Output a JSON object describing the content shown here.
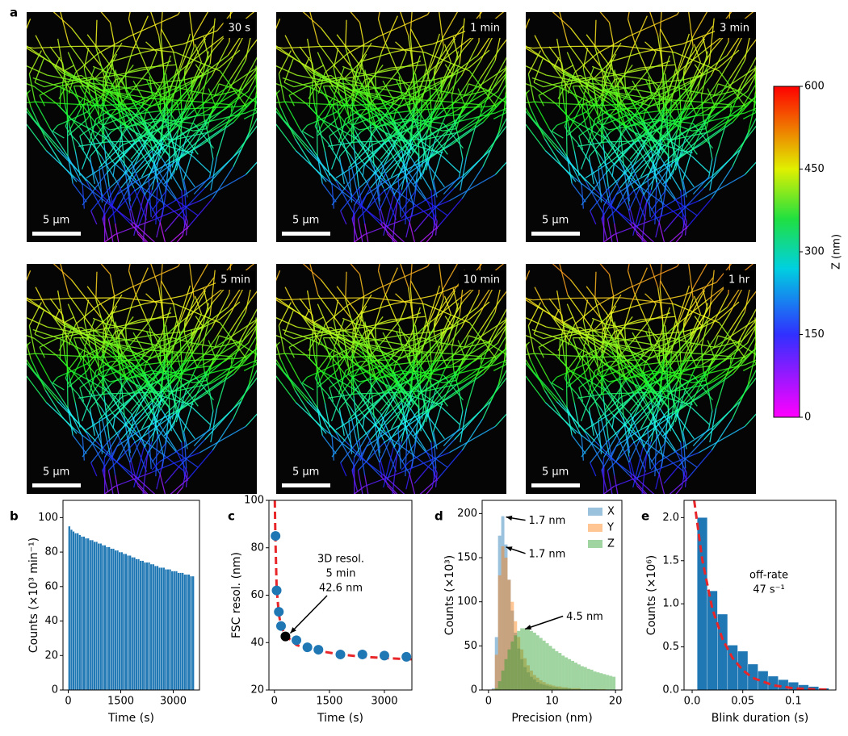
{
  "panel_labels": [
    "a",
    "b",
    "c",
    "d",
    "e"
  ],
  "images": [
    {
      "label": "30 s",
      "scale_bar": "5 μm"
    },
    {
      "label": "1 min",
      "scale_bar": "5 μm"
    },
    {
      "label": "3 min",
      "scale_bar": "5 μm"
    },
    {
      "label": "5 min",
      "scale_bar": "5 μm"
    },
    {
      "label": "10 min",
      "scale_bar": "5 μm"
    },
    {
      "label": "1 hr",
      "scale_bar": "5 μm"
    }
  ],
  "colorbar": {
    "label": "Z (nm)",
    "lim": [
      0,
      600
    ],
    "ticks": [
      0,
      150,
      300,
      450,
      600
    ]
  },
  "chart_data": [
    {
      "type": "histogram",
      "xlabel": "Time (s)",
      "ylabel": "Counts (×10³ min⁻¹)",
      "xlim": [
        -150,
        3750
      ],
      "xticks": [
        0,
        1500,
        3000
      ],
      "ylim": [
        0,
        110
      ],
      "yticks": [
        0,
        20,
        40,
        60,
        80,
        100
      ],
      "bins": [
        0,
        60,
        120,
        180,
        240,
        300,
        360,
        420,
        480,
        540,
        600,
        660,
        720,
        780,
        840,
        900,
        960,
        1020,
        1080,
        1140,
        1200,
        1260,
        1320,
        1380,
        1440,
        1500,
        1560,
        1620,
        1680,
        1740,
        1800,
        1860,
        1920,
        1980,
        2040,
        2100,
        2160,
        2220,
        2280,
        2340,
        2400,
        2460,
        2520,
        2580,
        2640,
        2700,
        2760,
        2820,
        2880,
        2940,
        3000,
        3060,
        3120,
        3180,
        3240,
        3300,
        3360,
        3420,
        3480,
        3540,
        3600
      ],
      "series": [
        {
          "color": "#1f77b4",
          "opacity": 1,
          "values": [
            95,
            93,
            92,
            91,
            91,
            90,
            89,
            89,
            88,
            88,
            87,
            87,
            86,
            86,
            85,
            85,
            84,
            84,
            83,
            83,
            82,
            82,
            81,
            81,
            80,
            80,
            79,
            79,
            78,
            78,
            77,
            77,
            76,
            76,
            75,
            75,
            74,
            74,
            74,
            73,
            73,
            72,
            72,
            71,
            71,
            71,
            70,
            70,
            70,
            69,
            69,
            69,
            68,
            68,
            68,
            67,
            67,
            67,
            66,
            66
          ]
        }
      ]
    },
    {
      "type": "scatter",
      "xlabel": "Time (s)",
      "ylabel": "FSC resol. (nm)",
      "xlim": [
        -150,
        3750
      ],
      "xticks": [
        0,
        1500,
        3000
      ],
      "ylim": [
        20,
        100
      ],
      "yticks": [
        20,
        40,
        60,
        80,
        100
      ],
      "series": [
        {
          "kind": "line",
          "color": "#e8262a",
          "dashed": true,
          "x": [
            10,
            20,
            30,
            60,
            120,
            180,
            300,
            600,
            900,
            1200,
            1800,
            2400,
            3000,
            3600,
            3750
          ],
          "values": [
            100,
            90,
            82,
            63,
            52,
            47,
            43,
            39,
            37.5,
            36.5,
            35,
            34,
            33.5,
            33,
            33
          ]
        },
        {
          "kind": "points",
          "color": "#1f77b4",
          "x": [
            30,
            60,
            120,
            180,
            600,
            900,
            1200,
            1800,
            2400,
            3000,
            3600
          ],
          "values": [
            85,
            62,
            53,
            47,
            41,
            38,
            37,
            35,
            35,
            34.5,
            34
          ]
        },
        {
          "kind": "points",
          "color": "#000000",
          "x": [
            300
          ],
          "values": [
            42.6
          ]
        }
      ],
      "annotations": [
        "3D resol.",
        "5 min",
        "42.6 nm"
      ]
    },
    {
      "type": "histogram",
      "xlabel": "Precision (nm)",
      "ylabel": "Counts (×10³)",
      "xlim": [
        -1,
        21
      ],
      "xticks": [
        0,
        10,
        20
      ],
      "ylim": [
        0,
        215
      ],
      "yticks": [
        0,
        50,
        100,
        150,
        200
      ],
      "legend": "upper right",
      "bins": [
        0,
        0.5,
        1,
        1.5,
        2,
        2.5,
        3,
        3.5,
        4,
        4.5,
        5,
        5.5,
        6,
        6.5,
        7,
        7.5,
        8,
        8.5,
        9,
        9.5,
        10,
        10.5,
        11,
        11.5,
        12,
        12.5,
        13,
        13.5,
        14,
        14.5,
        15,
        15.5,
        16,
        16.5,
        17,
        17.5,
        18,
        18.5,
        19,
        19.5,
        20
      ],
      "series": [
        {
          "name": "X",
          "color": "#1f77b4",
          "opacity": 0.45,
          "values": [
            0,
            2,
            60,
            175,
            197,
            165,
            125,
            90,
            65,
            47,
            35,
            26,
            20,
            15,
            12,
            9,
            7,
            6,
            5,
            4,
            3,
            3,
            2,
            2,
            2,
            2,
            1,
            1,
            1,
            1,
            1,
            1,
            1,
            1,
            0,
            0,
            0,
            0,
            0,
            0
          ]
        },
        {
          "name": "Y",
          "color": "#ff7f0e",
          "opacity": 0.45,
          "values": [
            0,
            1,
            40,
            130,
            163,
            150,
            125,
            100,
            78,
            60,
            46,
            36,
            28,
            22,
            17,
            14,
            11,
            9,
            7,
            6,
            5,
            4,
            4,
            3,
            3,
            2,
            2,
            2,
            2,
            1,
            1,
            1,
            1,
            1,
            1,
            1,
            1,
            0,
            0,
            0
          ]
        },
        {
          "name": "Z",
          "color": "#2ca02c",
          "opacity": 0.45,
          "values": [
            0,
            0,
            2,
            10,
            22,
            35,
            46,
            55,
            62,
            67,
            70,
            70,
            69,
            67,
            65,
            62,
            59,
            56,
            53,
            50,
            47,
            44,
            42,
            39,
            37,
            35,
            33,
            31,
            29,
            27,
            26,
            24,
            23,
            21,
            20,
            19,
            18,
            17,
            16,
            15
          ]
        }
      ],
      "annotations": [
        "1.7 nm",
        "1.7 nm",
        "4.5 nm"
      ]
    },
    {
      "type": "histogram",
      "xlabel": "Blink duration (s)",
      "ylabel": "Counts (×10⁶)",
      "xlim": [
        -0.008,
        0.142
      ],
      "xticks": [
        {
          "value": 0,
          "label": "0.0"
        },
        0.05,
        0.1
      ],
      "ylim": [
        0,
        2.2
      ],
      "yticks": [
        {
          "value": 0,
          "label": "0.0"
        },
        0.5,
        {
          "value": 1,
          "label": "1.0"
        },
        1.5,
        {
          "value": 2,
          "label": "2.0"
        }
      ],
      "bins": [
        0.005,
        0.015,
        0.025,
        0.035,
        0.045,
        0.055,
        0.065,
        0.075,
        0.085,
        0.095,
        0.105,
        0.115,
        0.125,
        0.135
      ],
      "series": [
        {
          "color": "#1f77b4",
          "opacity": 1,
          "values": [
            2.0,
            1.15,
            0.88,
            0.52,
            0.45,
            0.3,
            0.22,
            0.16,
            0.12,
            0.09,
            0.06,
            0.04,
            0.02
          ]
        },
        {
          "kind": "line",
          "color": "#e8262a",
          "dashed": true,
          "x": [
            0.002,
            0.01,
            0.02,
            0.03,
            0.04,
            0.05,
            0.06,
            0.08,
            0.1,
            0.12,
            0.135
          ],
          "values": [
            2.2,
            1.51,
            0.94,
            0.59,
            0.37,
            0.23,
            0.14,
            0.055,
            0.02,
            0.008,
            0.004
          ]
        }
      ],
      "annotations": [
        "off-rate",
        "47 s⁻¹"
      ]
    }
  ]
}
